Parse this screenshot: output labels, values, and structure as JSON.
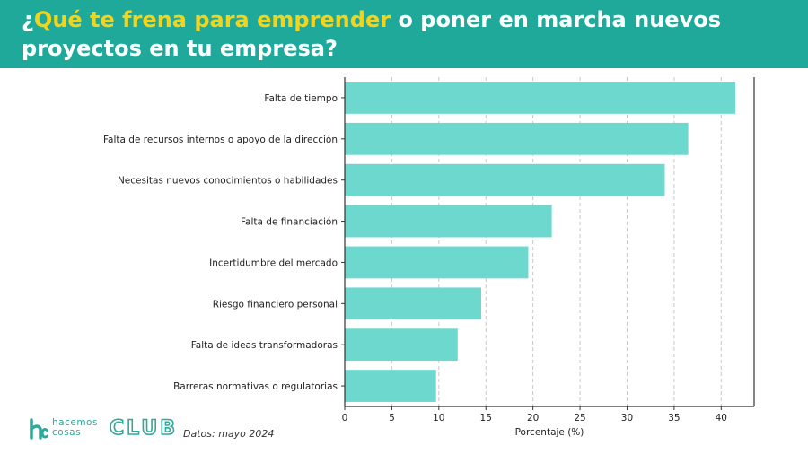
{
  "header": {
    "title_q": "¿",
    "title_highlight": "Qué te frena para emprender",
    "title_rest": " o poner en marcha nuevos proyectos en tu empresa?"
  },
  "footer": {
    "logo_word1": "hacemos",
    "logo_word2": "cosas",
    "logo_club": "CLUB",
    "source": "Datos: mayo 2024"
  },
  "colors": {
    "header_bg": "#1fa99a",
    "title_highlight": "#f3d41a",
    "bar": "#6dd8cd",
    "brand": "#2fa99a"
  },
  "chart_data": {
    "type": "bar",
    "orientation": "horizontal",
    "categories": [
      "Falta de tiempo",
      "Falta de recursos internos o apoyo de la dirección",
      "Necesitas nuevos conocimientos o habilidades",
      "Falta de financiación",
      "Incertidumbre del mercado",
      "Riesgo financiero personal",
      "Falta de ideas transformadoras",
      "Barreras normativas o regulatorias"
    ],
    "values": [
      41.5,
      36.5,
      34.0,
      22.0,
      19.5,
      14.5,
      12.0,
      9.7
    ],
    "xlabel": "Porcentaje (%)",
    "ylabel": "",
    "xlim": [
      0,
      43.5
    ],
    "xticks": [
      0,
      5,
      10,
      15,
      20,
      25,
      30,
      35,
      40
    ],
    "grid": "vertical-dashed",
    "legend": "none"
  }
}
